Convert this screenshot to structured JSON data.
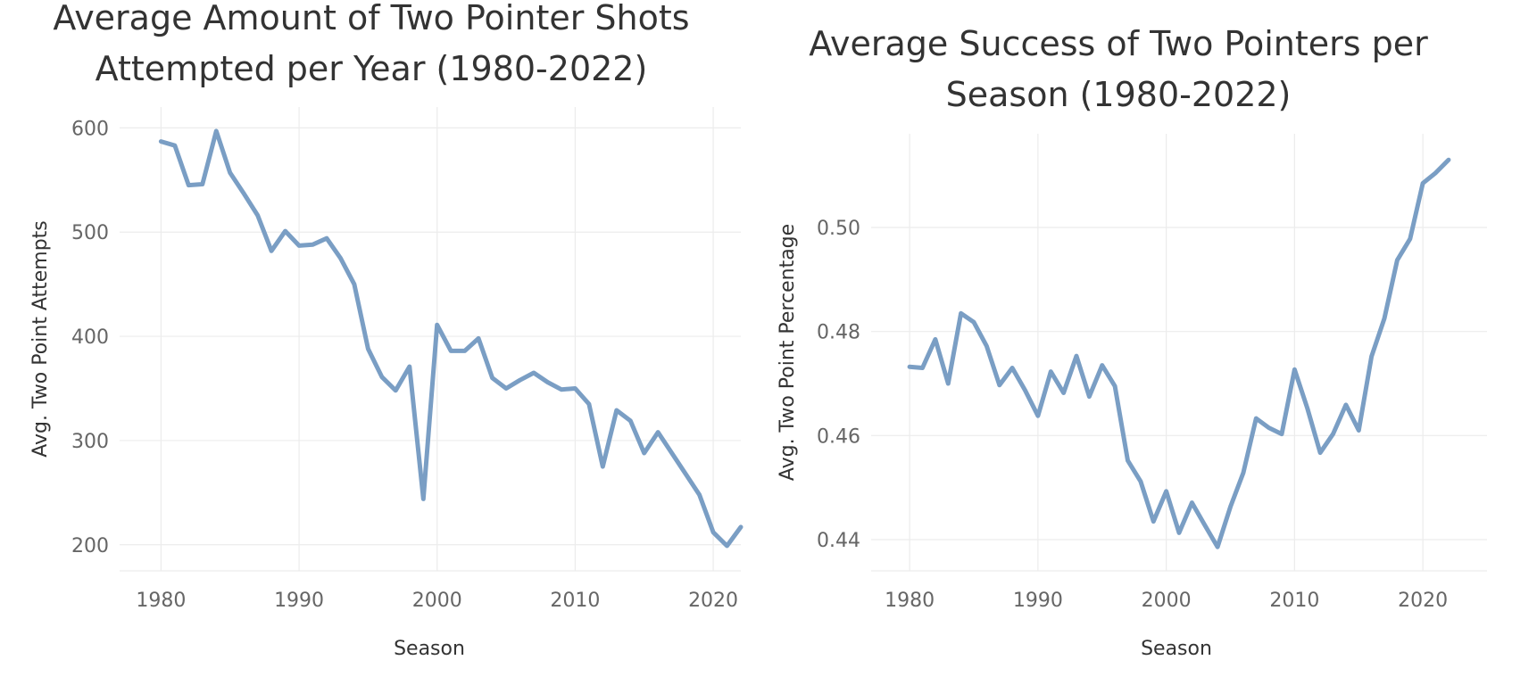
{
  "chart_data": [
    {
      "type": "line",
      "title_lines": [
        "Average Amount of Two Pointer Shots",
        "Attempted per Year (1980-2022)"
      ],
      "xlabel": "Season",
      "ylabel": "Avg. Two Point Attempts",
      "xlim": [
        1977,
        2022
      ],
      "ylim": [
        175,
        620
      ],
      "xticks": [
        1980,
        1990,
        2000,
        2010,
        2020
      ],
      "yticks": [
        200,
        300,
        400,
        500,
        600
      ],
      "ytick_labels": [
        "200",
        "300",
        "400",
        "500",
        "600"
      ],
      "color": "#7a9ec4",
      "grid": true,
      "x": [
        1980,
        1981,
        1982,
        1983,
        1984,
        1985,
        1986,
        1987,
        1988,
        1989,
        1990,
        1991,
        1992,
        1993,
        1994,
        1995,
        1996,
        1997,
        1998,
        1999,
        2000,
        2001,
        2002,
        2003,
        2004,
        2005,
        2006,
        2007,
        2008,
        2009,
        2010,
        2011,
        2012,
        2013,
        2014,
        2015,
        2016,
        2017,
        2018,
        2019,
        2020,
        2021,
        2022
      ],
      "values": [
        587,
        583,
        545,
        546,
        597,
        557,
        537,
        516,
        482,
        501,
        487,
        488,
        494,
        475,
        450,
        388,
        361,
        348,
        371,
        244,
        411,
        386,
        386,
        398,
        360,
        350,
        358,
        365,
        356,
        349,
        350,
        335,
        275,
        329,
        319,
        288,
        308,
        288,
        268,
        248,
        212,
        199,
        217
      ]
    },
    {
      "type": "line",
      "title_lines": [
        "Average Success of Two Pointers per",
        "Season (1980-2022)"
      ],
      "xlabel": "Season",
      "ylabel": "Avg. Two Point Percentage",
      "xlim": [
        1977,
        2025
      ],
      "ylim": [
        0.434,
        0.518
      ],
      "xticks": [
        1980,
        1990,
        2000,
        2010,
        2020
      ],
      "yticks": [
        0.44,
        0.46,
        0.48,
        0.5
      ],
      "ytick_labels": [
        "0.44",
        "0.46",
        "0.48",
        "0.50"
      ],
      "color": "#7a9ec4",
      "grid": true,
      "x": [
        1980,
        1981,
        1982,
        1983,
        1984,
        1985,
        1986,
        1987,
        1988,
        1989,
        1990,
        1991,
        1992,
        1993,
        1994,
        1995,
        1996,
        1997,
        1998,
        1999,
        2000,
        2001,
        2002,
        2003,
        2004,
        2005,
        2006,
        2007,
        2008,
        2009,
        2010,
        2011,
        2012,
        2013,
        2014,
        2015,
        2016,
        2017,
        2018,
        2019,
        2020,
        2021,
        2022
      ],
      "values": [
        0.4732,
        0.473,
        0.4785,
        0.47,
        0.4835,
        0.4818,
        0.4772,
        0.4697,
        0.473,
        0.4687,
        0.4638,
        0.4723,
        0.4682,
        0.4753,
        0.4675,
        0.4735,
        0.4695,
        0.4552,
        0.4512,
        0.4435,
        0.4493,
        0.4413,
        0.4471,
        0.4428,
        0.4386,
        0.4463,
        0.4528,
        0.4633,
        0.4615,
        0.4603,
        0.4727,
        0.4652,
        0.4567,
        0.4603,
        0.4659,
        0.461,
        0.4752,
        0.4825,
        0.4937,
        0.4978,
        0.5085,
        0.5105,
        0.513
      ]
    }
  ]
}
